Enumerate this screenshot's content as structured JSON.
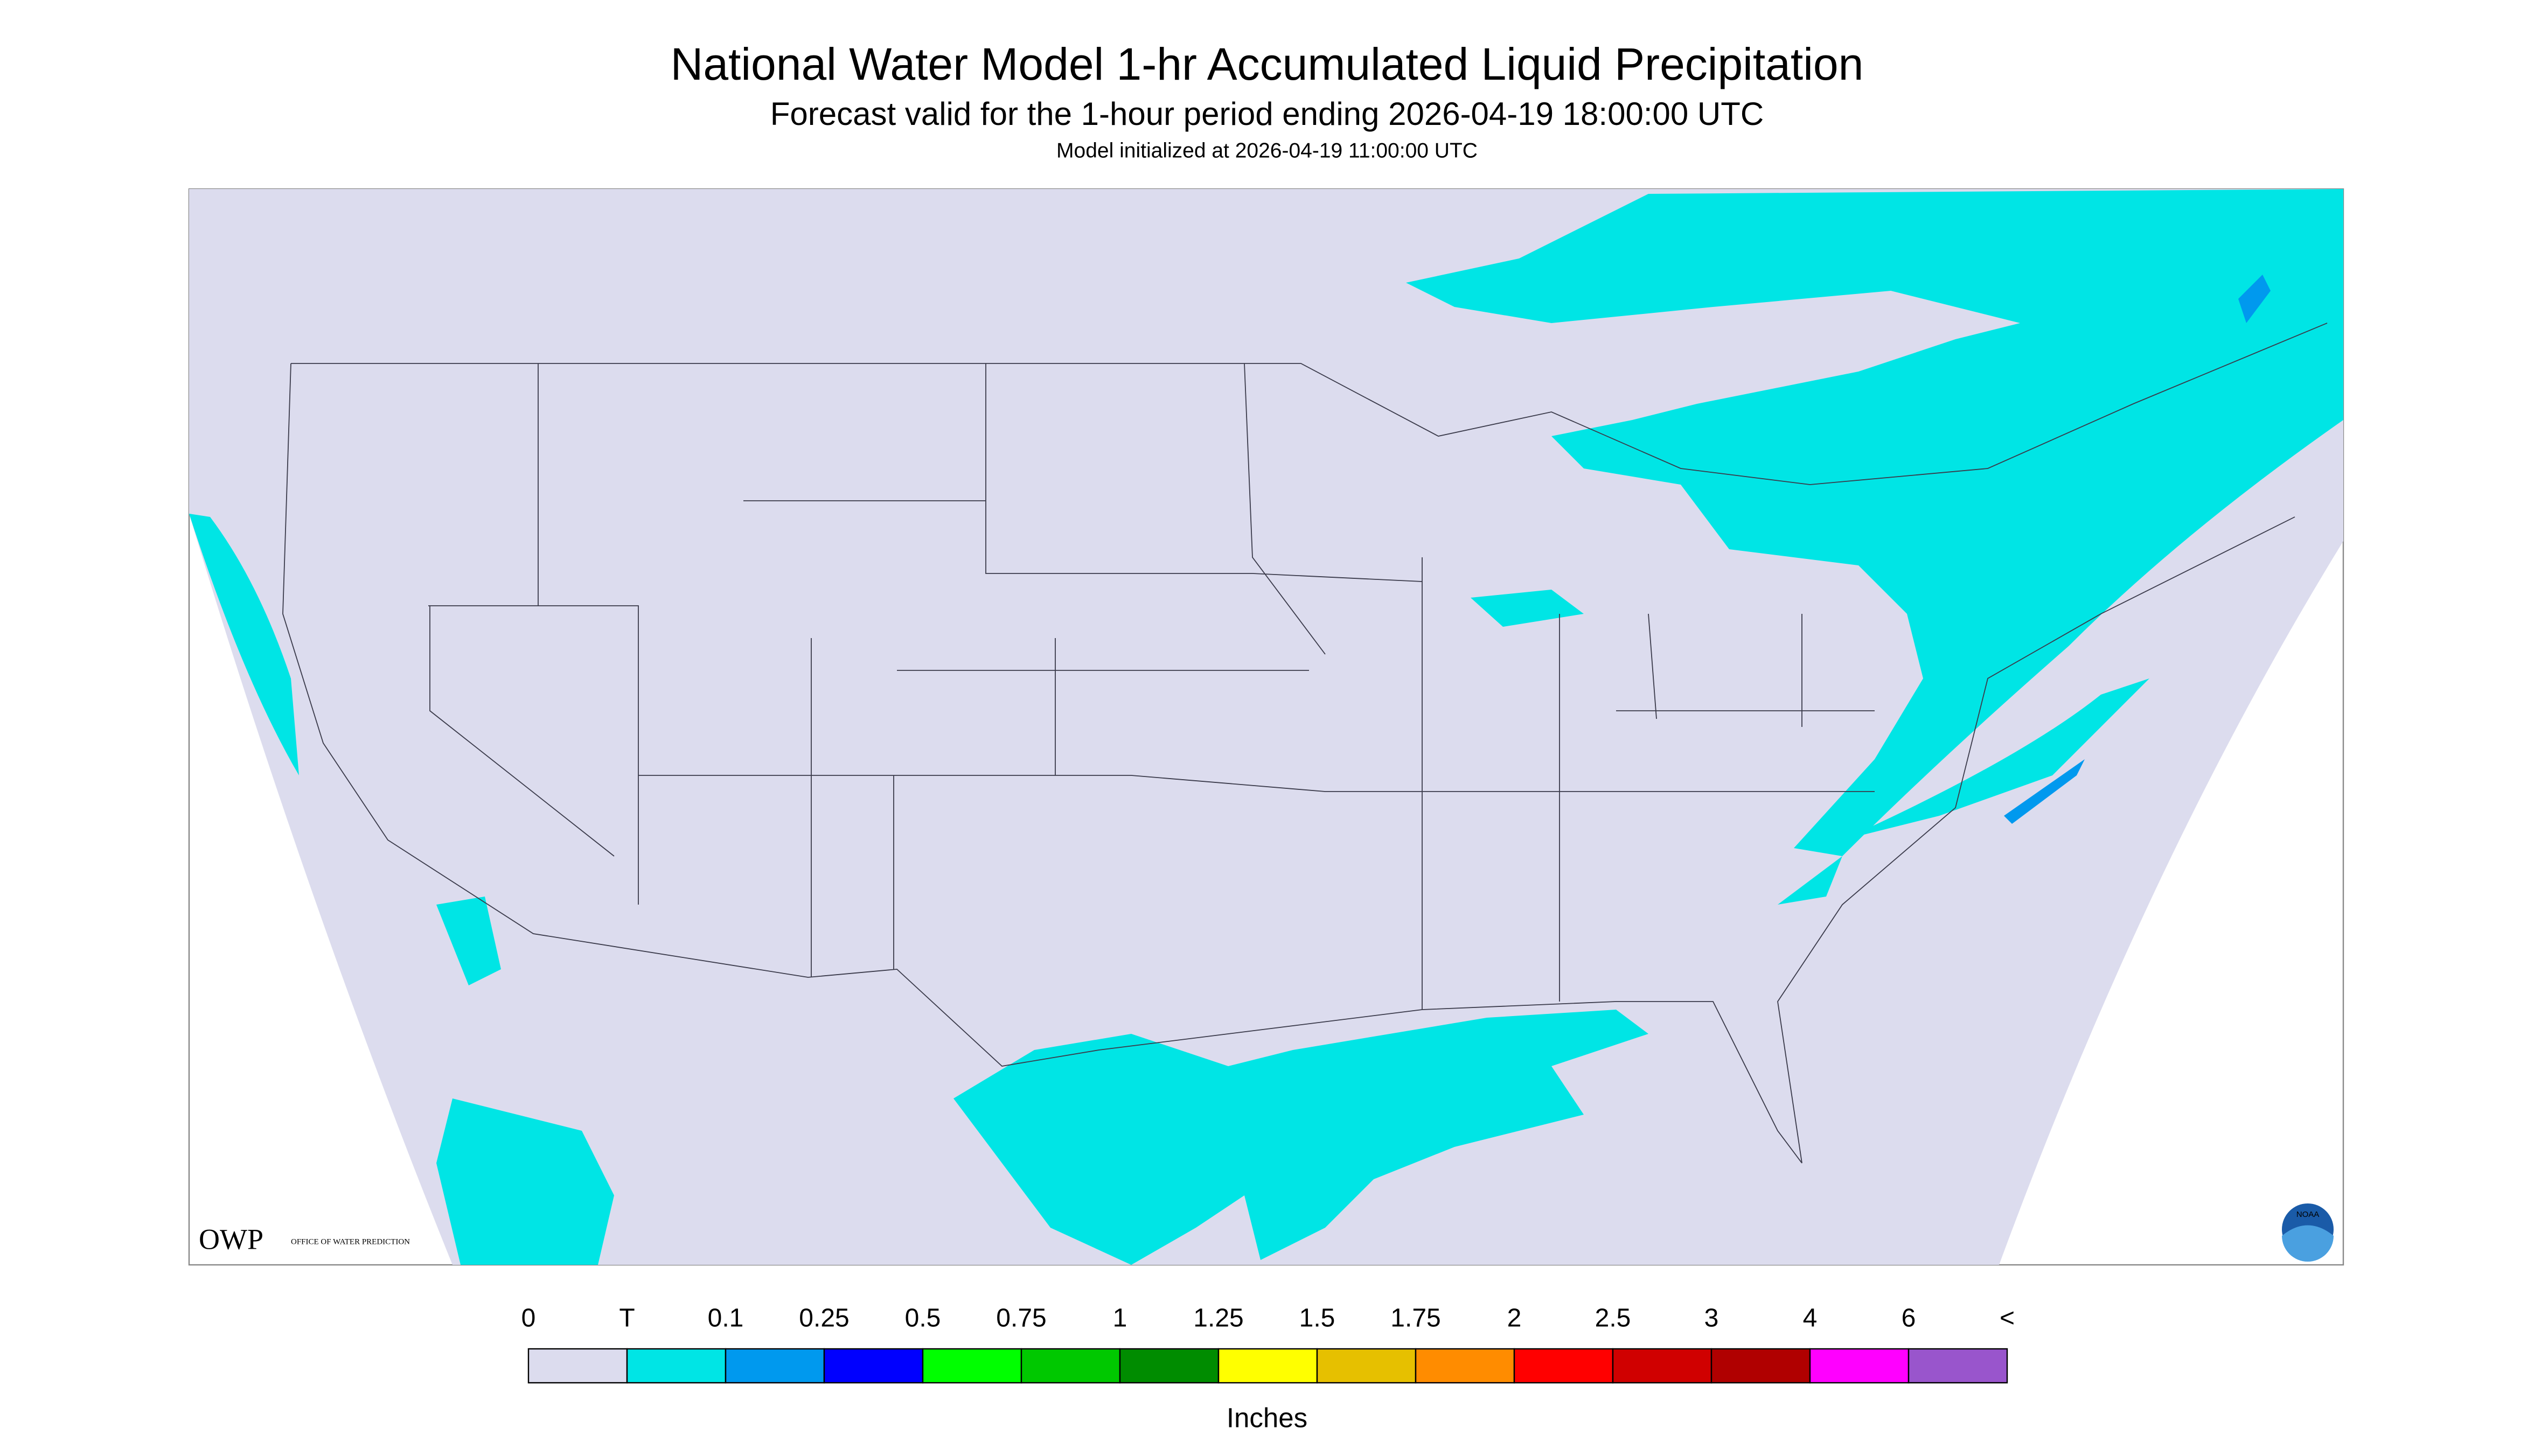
{
  "header": {
    "title": "National Water Model 1-hr Accumulated Liquid Precipitation",
    "subtitle": "Forecast valid for the 1-hour period ending 2026-04-19 18:00:00 UTC",
    "initialized": "Model initialized at 2026-04-19 11:00:00 UTC"
  },
  "legend": {
    "labels": [
      "0",
      "T",
      "0.1",
      "0.25",
      "0.5",
      "0.75",
      "1",
      "1.25",
      "1.5",
      "1.75",
      "2",
      "2.5",
      "3",
      "4",
      "6",
      "<"
    ],
    "colors": [
      "#dcdcee",
      "#00e5e5",
      "#0099ee",
      "#0000ff",
      "#00ff00",
      "#00c800",
      "#008c00",
      "#ffff00",
      "#e6c000",
      "#ff8c00",
      "#ff0000",
      "#d00000",
      "#b00000",
      "#ff00ff",
      "#9955cc"
    ],
    "unit": "Inches"
  },
  "logos": {
    "owp": "OWP",
    "owp_name": "OFFICE OF WATER PREDICTION",
    "noaa": "NOAA"
  }
}
